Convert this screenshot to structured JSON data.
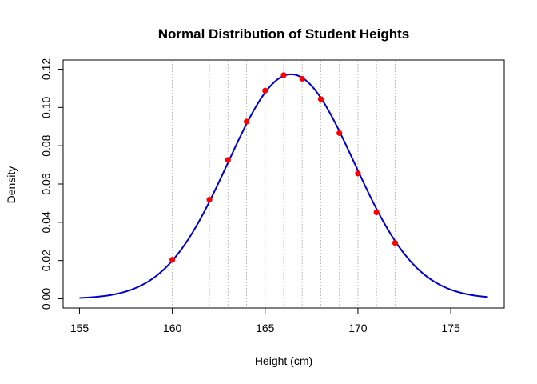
{
  "chart_data": {
    "type": "line",
    "title": "Normal Distribution of Student Heights",
    "xlabel": "Height (cm)",
    "ylabel": "Density",
    "xlim": [
      155,
      177
    ],
    "ylim": [
      0,
      0.12
    ],
    "x_ticks": [
      155,
      160,
      165,
      170,
      175
    ],
    "x_tick_labels": [
      "155",
      "160",
      "165",
      "170",
      "175"
    ],
    "y_ticks": [
      0,
      0.02,
      0.04,
      0.06,
      0.08,
      0.1,
      0.12
    ],
    "y_tick_labels": [
      "0.00",
      "0.02",
      "0.04",
      "0.06",
      "0.08",
      "0.10",
      "0.12"
    ],
    "curve": {
      "distribution": "normal",
      "mean": 166.4,
      "sd": 3.4,
      "from": 155,
      "to": 177,
      "color": "#0000CD"
    },
    "points": {
      "x": [
        160,
        162,
        163,
        164,
        165,
        166,
        167,
        168,
        169,
        170,
        171,
        172
      ],
      "y": [
        0.0204,
        0.0518,
        0.0726,
        0.0926,
        0.1088,
        0.1169,
        0.115,
        0.1044,
        0.0866,
        0.0655,
        0.0452,
        0.0292
      ],
      "color": "#FF0000"
    },
    "vlines": [
      160,
      162,
      163,
      164,
      165,
      166,
      167,
      168,
      169,
      170,
      171,
      172
    ],
    "vline_color": "#BEBEBE",
    "grid": false,
    "legend": "none"
  }
}
